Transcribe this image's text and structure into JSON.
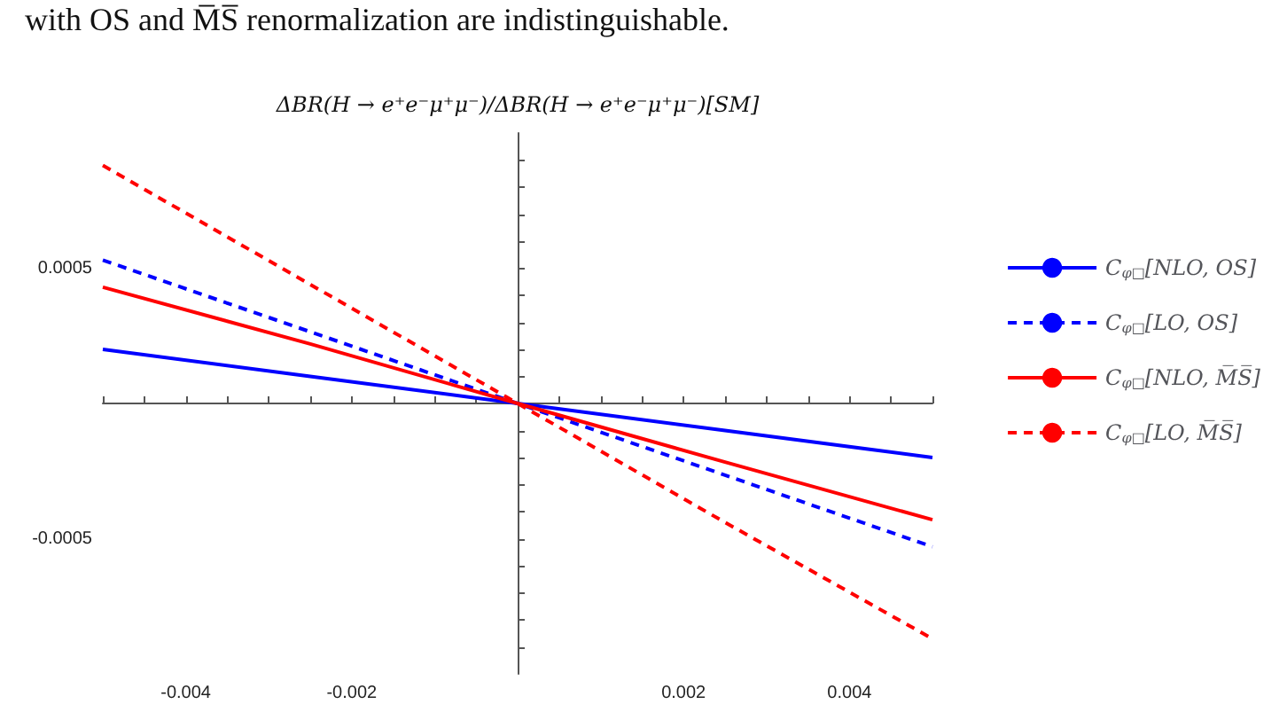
{
  "chart_data": {
    "type": "line",
    "ylabel": "ΔBR(H → e⁺e⁻μ⁺μ⁻)/ΔBR(H → e⁺e⁻μ⁺μ⁻)[SM]",
    "annotations": [
      "with OS and M̅S̅ renormalization are indistinguishable."
    ],
    "x": [
      -0.005,
      -0.0025,
      0,
      0.0025,
      0.005
    ],
    "series": [
      {
        "name": "C$_{φ□}$[NLO, OS]",
        "color": "#0000ff",
        "line_style": "solid",
        "values": [
          0.0002,
          0.0001,
          0,
          -0.0001,
          -0.0002
        ]
      },
      {
        "name": "C$_{φ□}$[LO, OS]",
        "color": "#0000ff",
        "line_style": "dashed",
        "values": [
          0.00053,
          0.000265,
          0,
          -0.000265,
          -0.00053
        ]
      },
      {
        "name": "C$_{φ□}$[NLO, M̅S̅]",
        "color": "#ff0000",
        "line_style": "solid",
        "values": [
          0.00043,
          0.00022,
          0,
          -0.000217,
          -0.00043
        ]
      },
      {
        "name": "C$_{φ□}$[LO, M̅S̅]",
        "color": "#ff0000",
        "line_style": "dashed",
        "values": [
          0.00088,
          0.00044,
          0,
          -0.00044,
          -0.00087
        ]
      }
    ],
    "xlim": [
      -0.005,
      0.005
    ],
    "xticks": [
      {
        "value": -0.005,
        "label": null
      },
      {
        "value": -0.0045,
        "label": null
      },
      -0.004,
      {
        "value": -0.0035,
        "label": null
      },
      {
        "value": -0.003,
        "label": null
      },
      {
        "value": -0.0025,
        "label": null
      },
      -0.002,
      {
        "value": -0.0015,
        "label": null
      },
      {
        "value": -0.001,
        "label": null
      },
      {
        "value": -0.0005,
        "label": null
      },
      {
        "value": 0.0005,
        "label": null
      },
      {
        "value": 0.001,
        "label": null
      },
      {
        "value": 0.0015,
        "label": null
      },
      0.002,
      {
        "value": 0.0025,
        "label": null
      },
      {
        "value": 0.003,
        "label": null
      },
      {
        "value": 0.0035,
        "label": null
      },
      0.004,
      {
        "value": 0.0045,
        "label": null
      },
      {
        "value": 0.005,
        "label": null
      }
    ],
    "ylim": [
      -0.001,
      0.001
    ],
    "yticks": [
      {
        "value": -0.0009,
        "label": null
      },
      {
        "value": -0.0008,
        "label": null
      },
      {
        "value": -0.0007,
        "label": null
      },
      {
        "value": -0.0006,
        "label": null
      },
      -0.0005,
      {
        "value": -0.0004,
        "label": null
      },
      {
        "value": -0.0003,
        "label": null
      },
      {
        "value": -0.0002,
        "label": null
      },
      {
        "value": -0.0001,
        "label": null
      },
      {
        "value": 0.0001,
        "label": null
      },
      {
        "value": 0.0002,
        "label": null
      },
      {
        "value": 0.0003,
        "label": null
      },
      {
        "value": 0.0004,
        "label": null
      },
      0.0005,
      {
        "value": 0.0006,
        "label": null
      },
      {
        "value": 0.0007,
        "label": null
      },
      {
        "value": 0.0008,
        "label": null
      },
      {
        "value": 0.0009,
        "label": null
      }
    ],
    "grid": false,
    "legend": "right",
    "marker": "none"
  }
}
